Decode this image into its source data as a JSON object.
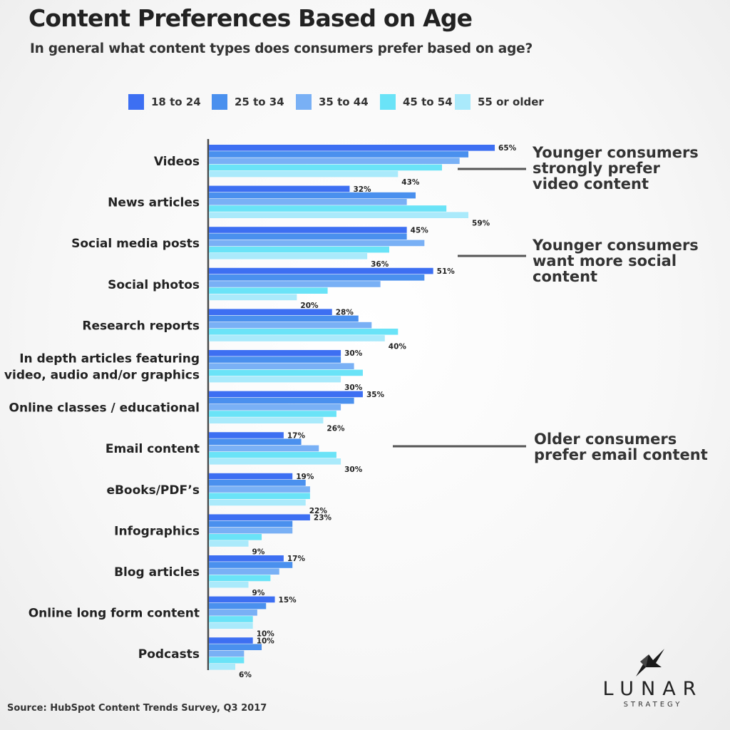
{
  "colors": {
    "series": [
      "#3d6ff2",
      "#4a90ee",
      "#79b0f5",
      "#6ae3f7",
      "#aaeafb"
    ],
    "axis": "#4a4a4a",
    "text": "#333333",
    "annotation_line": "#555555"
  },
  "header": {
    "title": "Content Preferences Based on Age",
    "subtitle": "In general what content types does consumers prefer based on age?"
  },
  "chart_data": {
    "type": "bar",
    "orientation": "horizontal",
    "title": "Content Preferences Based on Age",
    "subtitle": "In general what content types does consumers prefer based on age?",
    "legend_position": "top",
    "xlim": [
      0,
      70
    ],
    "grid": false,
    "categories": [
      "Videos",
      "News articles",
      "Social media posts",
      "Social photos",
      "Research reports",
      "In depth articles featuring\nvideo, audio and/or graphics",
      "Online classes / educational",
      "Email content",
      "eBooks/PDF’s",
      "Infographics",
      "Blog articles",
      "Online long form content",
      "Podcasts"
    ],
    "series": [
      {
        "name": "18 to 24",
        "values": [
          65,
          32,
          45,
          51,
          28,
          30,
          35,
          17,
          19,
          23,
          17,
          15,
          10
        ]
      },
      {
        "name": "25 to 34",
        "values": [
          59,
          47,
          45,
          49,
          34,
          30,
          33,
          21,
          22,
          19,
          19,
          13,
          12
        ]
      },
      {
        "name": "35 to 44",
        "values": [
          57,
          45,
          49,
          39,
          37,
          33,
          30,
          25,
          23,
          19,
          16,
          11,
          8
        ]
      },
      {
        "name": "45 to 54",
        "values": [
          53,
          54,
          41,
          27,
          43,
          35,
          29,
          29,
          23,
          12,
          14,
          10,
          8
        ]
      },
      {
        "name": "55 or older",
        "values": [
          43,
          59,
          36,
          20,
          40,
          30,
          26,
          30,
          22,
          9,
          9,
          10,
          6
        ]
      }
    ],
    "data_labels": [
      {
        "first": "65%",
        "last": "43%"
      },
      {
        "first": "32%",
        "last": "59%"
      },
      {
        "first": "45%",
        "last": "36%"
      },
      {
        "first": "51%",
        "last": "20%"
      },
      {
        "first": "28%",
        "last": "40%"
      },
      {
        "first": "30%",
        "last": "30%"
      },
      {
        "first": "35%",
        "last": "26%"
      },
      {
        "first": "17%",
        "last": "30%"
      },
      {
        "first": "19%",
        "last": "22%"
      },
      {
        "first": "23%",
        "last": "9%"
      },
      {
        "first": "17%",
        "last": "9%"
      },
      {
        "first": "15%",
        "last": "10%"
      },
      {
        "first": "10%",
        "last": "6%"
      }
    ]
  },
  "annotations": [
    {
      "text": "Younger consumers\nstrongly prefer\nvideo content"
    },
    {
      "text": "Younger consumers\nwant more social\ncontent"
    },
    {
      "text": "Older consumers\nprefer email content"
    }
  ],
  "footer": {
    "source": "Source: HubSpot Content Trends Survey, Q3 2017"
  },
  "logo": {
    "name": "LUNAR",
    "tagline": "STRATEGY",
    "icon": "star-rocket-icon"
  }
}
